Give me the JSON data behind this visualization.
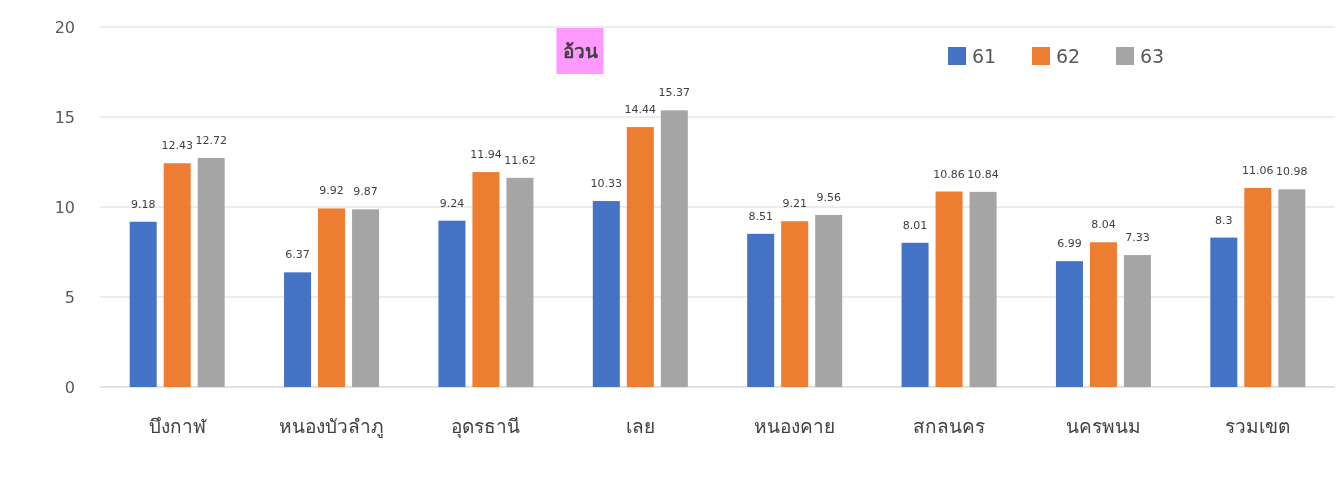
{
  "chart_data": {
    "type": "bar",
    "title": "อ้วน",
    "categories": [
      "บึงกาฬ",
      "หนองบัวลำภู",
      "อุดรธานี",
      "เลย",
      "หนองคาย",
      "สกลนคร",
      "นครพนม",
      "รวมเขต"
    ],
    "series": [
      {
        "name": "61",
        "color": "#4472c4",
        "values": [
          9.18,
          6.37,
          9.24,
          10.33,
          8.51,
          8.01,
          6.99,
          8.3
        ]
      },
      {
        "name": "62",
        "color": "#ed7d31",
        "values": [
          12.43,
          9.92,
          11.94,
          14.44,
          9.21,
          10.86,
          8.04,
          11.06
        ]
      },
      {
        "name": "63",
        "color": "#a5a5a5",
        "values": [
          12.72,
          9.87,
          11.62,
          15.37,
          9.56,
          10.84,
          7.33,
          10.98
        ]
      }
    ],
    "ylim": [
      0,
      20
    ],
    "yticks": [
      0,
      5,
      10,
      15,
      20
    ],
    "grid": "y",
    "legend": "top right",
    "data_labels": true
  }
}
